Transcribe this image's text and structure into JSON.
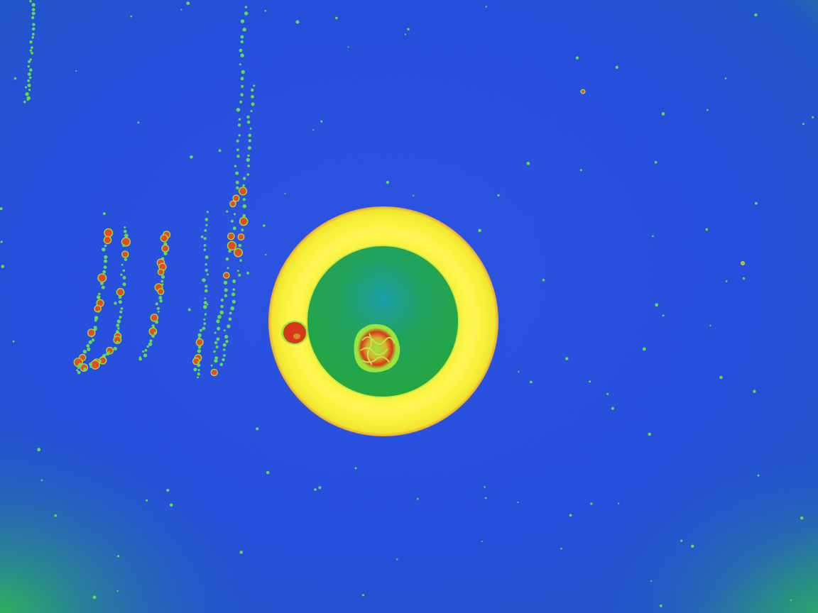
{
  "image": {
    "kind": "false-color microscopy photograph",
    "palette": {
      "background": "#1f47d9",
      "background_edge_glow": "#1e9a63",
      "ring_outer": "#f3ee2a",
      "ring_inner_shade": "#fff64d",
      "ring_edge": "#e8a33a",
      "disk_fill": "#23a34a",
      "disk_center": "#1c9ea8",
      "speck": "#5fdc55",
      "speck_hot": "#e84b1e",
      "cluster_core": "#d6391a",
      "cluster_glow": "#9be53d"
    },
    "features": [
      "circular-ring",
      "inner-green-disk",
      "central-particle-cluster",
      "red-particle-on-ring",
      "dotted-trails-left",
      "scattered-specks"
    ]
  }
}
